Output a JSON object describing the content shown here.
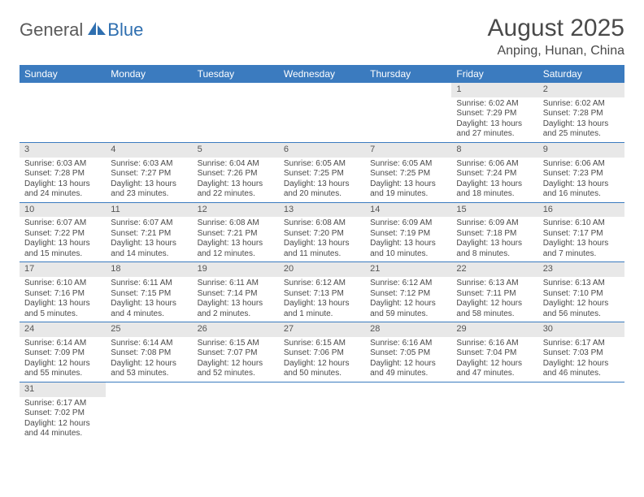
{
  "logo": {
    "text1": "General",
    "text2": "Blue"
  },
  "title": "August 2025",
  "location": "Anping, Hunan, China",
  "header_bg": "#3b7bbf",
  "daynum_bg": "#e8e8e8",
  "text_color": "#4a4a4a",
  "weekdays": [
    "Sunday",
    "Monday",
    "Tuesday",
    "Wednesday",
    "Thursday",
    "Friday",
    "Saturday"
  ],
  "weeks": [
    [
      null,
      null,
      null,
      null,
      null,
      {
        "d": "1",
        "sr": "6:02 AM",
        "ss": "7:29 PM",
        "dl": "13 hours and 27 minutes."
      },
      {
        "d": "2",
        "sr": "6:02 AM",
        "ss": "7:28 PM",
        "dl": "13 hours and 25 minutes."
      }
    ],
    [
      {
        "d": "3",
        "sr": "6:03 AM",
        "ss": "7:28 PM",
        "dl": "13 hours and 24 minutes."
      },
      {
        "d": "4",
        "sr": "6:03 AM",
        "ss": "7:27 PM",
        "dl": "13 hours and 23 minutes."
      },
      {
        "d": "5",
        "sr": "6:04 AM",
        "ss": "7:26 PM",
        "dl": "13 hours and 22 minutes."
      },
      {
        "d": "6",
        "sr": "6:05 AM",
        "ss": "7:25 PM",
        "dl": "13 hours and 20 minutes."
      },
      {
        "d": "7",
        "sr": "6:05 AM",
        "ss": "7:25 PM",
        "dl": "13 hours and 19 minutes."
      },
      {
        "d": "8",
        "sr": "6:06 AM",
        "ss": "7:24 PM",
        "dl": "13 hours and 18 minutes."
      },
      {
        "d": "9",
        "sr": "6:06 AM",
        "ss": "7:23 PM",
        "dl": "13 hours and 16 minutes."
      }
    ],
    [
      {
        "d": "10",
        "sr": "6:07 AM",
        "ss": "7:22 PM",
        "dl": "13 hours and 15 minutes."
      },
      {
        "d": "11",
        "sr": "6:07 AM",
        "ss": "7:21 PM",
        "dl": "13 hours and 14 minutes."
      },
      {
        "d": "12",
        "sr": "6:08 AM",
        "ss": "7:21 PM",
        "dl": "13 hours and 12 minutes."
      },
      {
        "d": "13",
        "sr": "6:08 AM",
        "ss": "7:20 PM",
        "dl": "13 hours and 11 minutes."
      },
      {
        "d": "14",
        "sr": "6:09 AM",
        "ss": "7:19 PM",
        "dl": "13 hours and 10 minutes."
      },
      {
        "d": "15",
        "sr": "6:09 AM",
        "ss": "7:18 PM",
        "dl": "13 hours and 8 minutes."
      },
      {
        "d": "16",
        "sr": "6:10 AM",
        "ss": "7:17 PM",
        "dl": "13 hours and 7 minutes."
      }
    ],
    [
      {
        "d": "17",
        "sr": "6:10 AM",
        "ss": "7:16 PM",
        "dl": "13 hours and 5 minutes."
      },
      {
        "d": "18",
        "sr": "6:11 AM",
        "ss": "7:15 PM",
        "dl": "13 hours and 4 minutes."
      },
      {
        "d": "19",
        "sr": "6:11 AM",
        "ss": "7:14 PM",
        "dl": "13 hours and 2 minutes."
      },
      {
        "d": "20",
        "sr": "6:12 AM",
        "ss": "7:13 PM",
        "dl": "13 hours and 1 minute."
      },
      {
        "d": "21",
        "sr": "6:12 AM",
        "ss": "7:12 PM",
        "dl": "12 hours and 59 minutes."
      },
      {
        "d": "22",
        "sr": "6:13 AM",
        "ss": "7:11 PM",
        "dl": "12 hours and 58 minutes."
      },
      {
        "d": "23",
        "sr": "6:13 AM",
        "ss": "7:10 PM",
        "dl": "12 hours and 56 minutes."
      }
    ],
    [
      {
        "d": "24",
        "sr": "6:14 AM",
        "ss": "7:09 PM",
        "dl": "12 hours and 55 minutes."
      },
      {
        "d": "25",
        "sr": "6:14 AM",
        "ss": "7:08 PM",
        "dl": "12 hours and 53 minutes."
      },
      {
        "d": "26",
        "sr": "6:15 AM",
        "ss": "7:07 PM",
        "dl": "12 hours and 52 minutes."
      },
      {
        "d": "27",
        "sr": "6:15 AM",
        "ss": "7:06 PM",
        "dl": "12 hours and 50 minutes."
      },
      {
        "d": "28",
        "sr": "6:16 AM",
        "ss": "7:05 PM",
        "dl": "12 hours and 49 minutes."
      },
      {
        "d": "29",
        "sr": "6:16 AM",
        "ss": "7:04 PM",
        "dl": "12 hours and 47 minutes."
      },
      {
        "d": "30",
        "sr": "6:17 AM",
        "ss": "7:03 PM",
        "dl": "12 hours and 46 minutes."
      }
    ],
    [
      {
        "d": "31",
        "sr": "6:17 AM",
        "ss": "7:02 PM",
        "dl": "12 hours and 44 minutes."
      },
      null,
      null,
      null,
      null,
      null,
      null
    ]
  ],
  "labels": {
    "sunrise": "Sunrise:",
    "sunset": "Sunset:",
    "daylight": "Daylight:"
  }
}
